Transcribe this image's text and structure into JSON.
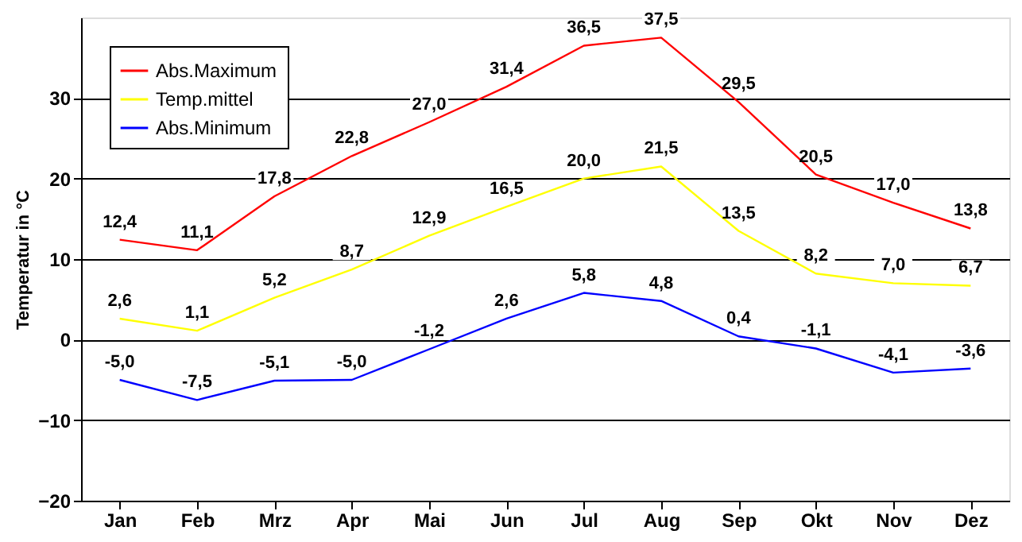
{
  "chart_data": {
    "type": "line",
    "ylabel": "Temperatur in °C",
    "categories": [
      "Jan",
      "Feb",
      "Mrz",
      "Apr",
      "Mai",
      "Jun",
      "Jul",
      "Aug",
      "Sep",
      "Okt",
      "Nov",
      "Dez"
    ],
    "series": [
      {
        "name": "Abs.Maximum",
        "color": "#ff0000",
        "values": [
          12.4,
          11.1,
          17.8,
          22.8,
          27.0,
          31.4,
          36.5,
          37.5,
          29.5,
          20.5,
          17.0,
          13.8
        ],
        "value_labels": [
          "12,4",
          "11,1",
          "17,8",
          "22,8",
          "27,0",
          "31,4",
          "36,5",
          "37,5",
          "29,5",
          "20,5",
          "17,0",
          "13,8"
        ]
      },
      {
        "name": "Temp.mittel",
        "color": "#ffff00",
        "values": [
          2.6,
          1.1,
          5.2,
          8.7,
          12.9,
          16.5,
          20.0,
          21.5,
          13.5,
          8.2,
          7.0,
          6.7
        ],
        "value_labels": [
          "2,6",
          "1,1",
          "5,2",
          "8,7",
          "12,9",
          "16,5",
          "20,0",
          "21,5",
          "13,5",
          "8,2",
          "7,0",
          "6,7"
        ]
      },
      {
        "name": "Abs.Minimum",
        "color": "#0000ff",
        "values": [
          -5.0,
          -7.5,
          -5.1,
          -5.0,
          -1.2,
          2.6,
          5.8,
          4.8,
          0.4,
          -1.1,
          -4.1,
          -3.6
        ],
        "value_labels": [
          "-5,0",
          "-7,5",
          "-5,1",
          "-5,0",
          "-1,2",
          "2,6",
          "5,8",
          "4,8",
          "0,4",
          "-1,1",
          "-4,1",
          "-3,6"
        ]
      }
    ],
    "ylim": [
      -20,
      40
    ],
    "yticks": [
      -20,
      -10,
      0,
      10,
      20,
      30
    ],
    "grid": "y",
    "legend": "top left",
    "marker": "none",
    "line_style": "solid"
  }
}
